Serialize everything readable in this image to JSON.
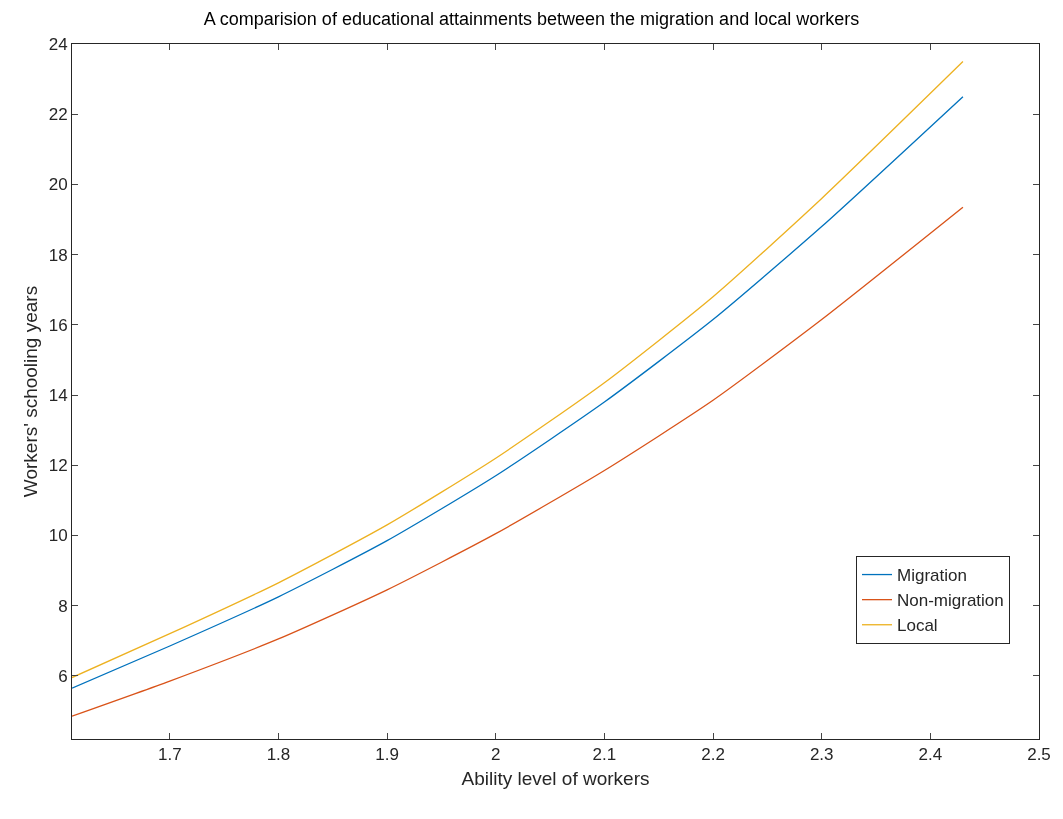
{
  "chart_data": {
    "type": "line",
    "title": "A comparision of educational attainments between the migration and local workers",
    "xlabel": "Ability level of workers",
    "ylabel": "Workers' schooling years",
    "x": [
      1.61,
      1.7,
      1.8,
      1.9,
      2.0,
      2.1,
      2.2,
      2.3,
      2.43
    ],
    "series": [
      {
        "name": "Migration",
        "color": "#0072bd",
        "values": [
          5.65,
          6.85,
          8.25,
          9.85,
          11.7,
          13.8,
          16.15,
          18.8,
          22.5
        ]
      },
      {
        "name": "Non-migration",
        "color": "#d95319",
        "values": [
          4.85,
          5.85,
          7.05,
          8.45,
          10.05,
          11.85,
          13.85,
          16.15,
          19.35
        ]
      },
      {
        "name": "Local",
        "color": "#edb120",
        "values": [
          5.95,
          7.2,
          8.65,
          10.3,
          12.2,
          14.35,
          16.8,
          19.6,
          23.5
        ]
      }
    ],
    "xlim": [
      1.61,
      2.5
    ],
    "xticks": [
      1.7,
      1.8,
      1.9,
      2,
      2.1,
      2.2,
      2.3,
      2.4,
      2.5
    ],
    "ylim": [
      4.2,
      24
    ],
    "yticks": [
      6,
      8,
      10,
      12,
      14,
      16,
      18,
      20,
      22,
      24
    ],
    "grid": false,
    "legend": "bottom right",
    "marker": "none",
    "line_style": "solid"
  }
}
